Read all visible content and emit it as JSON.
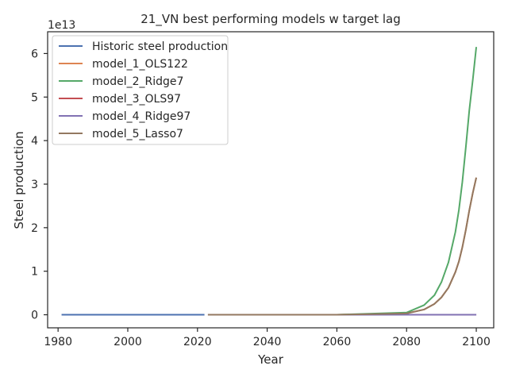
{
  "chart_data": {
    "type": "line",
    "title": "21_VN best performing models w target lag",
    "xlabel": "Year",
    "ylabel": "Steel production",
    "y_offset_label": "1e13",
    "xlim": [
      1977,
      2105
    ],
    "ylim": [
      -0.3,
      6.5
    ],
    "y_scale": 10000000000000.0,
    "xticks": [
      1980,
      2000,
      2020,
      2040,
      2060,
      2080,
      2100
    ],
    "yticks": [
      0,
      1,
      2,
      3,
      4,
      5,
      6
    ],
    "grid": false,
    "legend_position": "top-left",
    "series": [
      {
        "name": "Historic steel production",
        "color": "#4c72b0",
        "x": [
          1981,
          2022
        ],
        "y": [
          0,
          0
        ]
      },
      {
        "name": "model_1_OLS122",
        "color": "#dd8452",
        "x": [
          2023,
          2060,
          2080,
          2085,
          2088,
          2090,
          2092,
          2094,
          2095,
          2096,
          2097,
          2098,
          2099,
          2100
        ],
        "y": [
          0,
          0,
          0.03,
          0.12,
          0.25,
          0.4,
          0.62,
          0.98,
          1.22,
          1.55,
          1.95,
          2.4,
          2.8,
          3.15
        ]
      },
      {
        "name": "model_2_Ridge7",
        "color": "#55a868",
        "x": [
          2023,
          2060,
          2080,
          2085,
          2088,
          2090,
          2092,
          2094,
          2095,
          2096,
          2097,
          2098,
          2099,
          2100
        ],
        "y": [
          0,
          0,
          0.05,
          0.22,
          0.45,
          0.75,
          1.2,
          1.9,
          2.4,
          3.05,
          3.85,
          4.7,
          5.4,
          6.15
        ]
      },
      {
        "name": "model_3_OLS97",
        "color": "#c44e52",
        "x": [
          2023,
          2100
        ],
        "y": [
          0,
          0
        ]
      },
      {
        "name": "model_4_Ridge97",
        "color": "#8172b3",
        "x": [
          2023,
          2100
        ],
        "y": [
          0,
          0
        ]
      },
      {
        "name": "model_5_Lasso7",
        "color": "#937860",
        "x": [
          2023,
          2060,
          2080,
          2085,
          2088,
          2090,
          2092,
          2094,
          2095,
          2096,
          2097,
          2098,
          2099,
          2100
        ],
        "y": [
          0,
          0,
          0.03,
          0.12,
          0.25,
          0.4,
          0.62,
          0.98,
          1.22,
          1.55,
          1.95,
          2.4,
          2.8,
          3.15
        ]
      }
    ]
  }
}
